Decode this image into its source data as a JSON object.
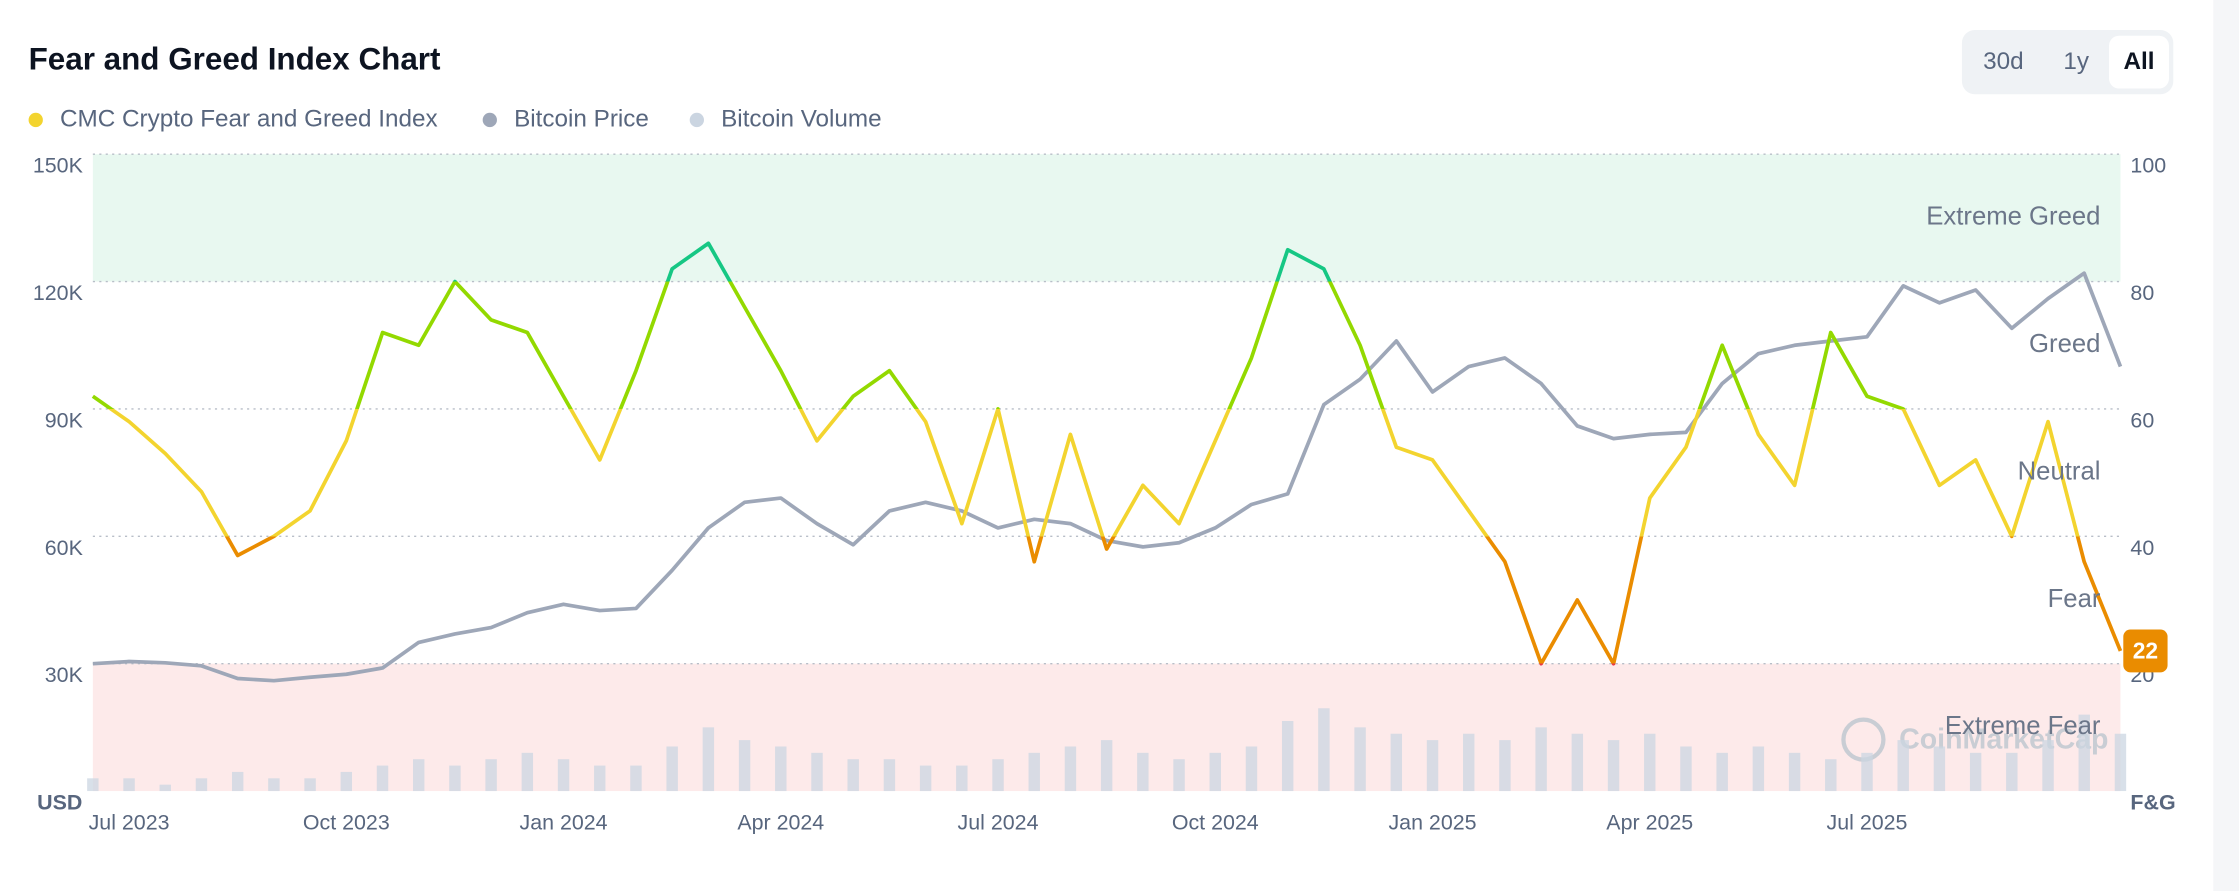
{
  "chart_data": {
    "type": "line",
    "title": "Fear and Greed Index Chart",
    "range_buttons": {
      "options": [
        "30d",
        "1y",
        "All"
      ],
      "active": 2
    },
    "categories": [
      null,
      "Jul 2023",
      null,
      null,
      null,
      null,
      null,
      "Oct 2023",
      null,
      null,
      null,
      null,
      null,
      "Jan 2024",
      null,
      null,
      null,
      null,
      null,
      "Apr 2024",
      null,
      null,
      null,
      null,
      null,
      "Jul 2024",
      null,
      null,
      null,
      null,
      null,
      "Oct 2024",
      null,
      null,
      null,
      null,
      null,
      "Jan 2025",
      null,
      null,
      null,
      null,
      null,
      "Apr 2025",
      null,
      null,
      null,
      null,
      null,
      "Jul 2025",
      null,
      null,
      null,
      null,
      null,
      null,
      null
    ],
    "series": [
      {
        "name": "CMC Crypto Fear and Greed Index",
        "color": "#f3d42f",
        "axis": "y2",
        "values": [
          62,
          58,
          53,
          47,
          37,
          40,
          44,
          55,
          72,
          70,
          80,
          74,
          72,
          62,
          52,
          66,
          82,
          86,
          76,
          66,
          55,
          62,
          66,
          58,
          42,
          60,
          36,
          56,
          38,
          48,
          42,
          55,
          68,
          85,
          82,
          70,
          54,
          52,
          44,
          36,
          20,
          30,
          20,
          46,
          54,
          70,
          56,
          48,
          72,
          62,
          60,
          48,
          52,
          40,
          58,
          36,
          22
        ]
      },
      {
        "name": "Bitcoin Price",
        "color": "#9ea7b8",
        "axis": "y",
        "values": [
          30000,
          30500,
          30200,
          29500,
          26500,
          26000,
          26800,
          27500,
          29000,
          35000,
          37000,
          38500,
          42000,
          44000,
          42500,
          43000,
          52000,
          62000,
          68000,
          69000,
          63000,
          58000,
          66000,
          68000,
          66000,
          62000,
          64000,
          63000,
          59000,
          57500,
          58500,
          62000,
          67500,
          70000,
          91000,
          97000,
          106000,
          94000,
          100000,
          102000,
          96000,
          86000,
          83000,
          84000,
          84500,
          96000,
          103000,
          105000,
          106000,
          107000,
          119000,
          115000,
          118000,
          109000,
          116000,
          122000,
          100000
        ]
      },
      {
        "name": "Bitcoin Volume",
        "color": "#cbd5e1",
        "type": "bar",
        "axis": "y3",
        "values": [
          2,
          2,
          1,
          2,
          3,
          2,
          2,
          3,
          4,
          5,
          4,
          5,
          6,
          5,
          4,
          4,
          7,
          10,
          8,
          7,
          6,
          5,
          5,
          4,
          4,
          5,
          6,
          7,
          8,
          6,
          5,
          6,
          7,
          11,
          13,
          10,
          9,
          8,
          9,
          8,
          10,
          9,
          8,
          9,
          7,
          6,
          7,
          6,
          5,
          6,
          8,
          7,
          6,
          6,
          8,
          12,
          9
        ]
      }
    ],
    "ylim": [
      0,
      150000
    ],
    "yticks": [
      {
        "value": 30000,
        "label": "30K"
      },
      {
        "value": 60000,
        "label": "60K"
      },
      {
        "value": 90000,
        "label": "90K"
      },
      {
        "value": 120000,
        "label": "120K"
      },
      {
        "value": 150000,
        "label": "150K"
      }
    ],
    "y_unit": "USD",
    "y2lim": [
      0,
      100
    ],
    "y2ticks": [
      20,
      40,
      60,
      80,
      100
    ],
    "y2_unit": "F&G",
    "y3lim": [
      0,
      100
    ],
    "grid": true,
    "zones": [
      {
        "label": "Extreme Fear",
        "from": 0,
        "to": 20,
        "color": "#ea3943",
        "band": "#fdeaea"
      },
      {
        "label": "Fear",
        "from": 20,
        "to": 40,
        "color": "#ea8c00"
      },
      {
        "label": "Neutral",
        "from": 40,
        "to": 60,
        "color": "#f3d42f"
      },
      {
        "label": "Greed",
        "from": 60,
        "to": 80,
        "color": "#93d900"
      },
      {
        "label": "Extreme Greed",
        "from": 80,
        "to": 100,
        "color": "#16c784",
        "band": "#e8f8f0"
      }
    ],
    "watermark": "CoinMarketCap"
  }
}
